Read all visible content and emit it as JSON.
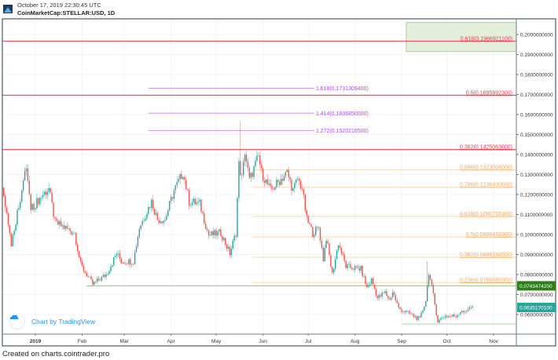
{
  "header": {
    "timestamp": "October 17, 2019 22:30:45 UTC",
    "symbol": "CoinMarketCap:STELLAR:USD, 1D"
  },
  "watermark": "Chart by TradingView",
  "footer": "Created on charts.cointrader.pro",
  "colors": {
    "up": "#26a69a",
    "down": "#ef5350",
    "red_level": "#f23645",
    "purple_level": "#b04ee0",
    "orange_level": "#f7a95c",
    "green_level": "#2e7d1a",
    "current": "#26a69a",
    "zone": "#e3eedb"
  },
  "chart_data": {
    "type": "candlestick",
    "title": "CoinMarketCap:STELLAR:USD, 1D",
    "x_unit": "day offset from 2019-01-01",
    "xlim": [
      -22,
      302
    ],
    "ylim": [
      0.0447,
      0.2106
    ],
    "x_ticks": [
      {
        "label": "2019",
        "day": 0
      },
      {
        "label": "Feb",
        "day": 31
      },
      {
        "label": "Mar",
        "day": 59
      },
      {
        "label": "Apr",
        "day": 90
      },
      {
        "label": "May",
        "day": 120
      },
      {
        "label": "Jun",
        "day": 151
      },
      {
        "label": "Jul",
        "day": 181
      },
      {
        "label": "Aug",
        "day": 212
      },
      {
        "label": "Sep",
        "day": 243
      },
      {
        "label": "Oct",
        "day": 273
      },
      {
        "label": "Nov",
        "day": 304
      }
    ],
    "y_ticks": [
      "0.2000000000",
      "0.1900000000",
      "0.1800000000",
      "0.1700000000",
      "0.1600000000",
      "0.1500000000",
      "0.1400000000",
      "0.1300000000",
      "0.1200000000",
      "0.1100000000",
      "0.1000000000",
      "0.0900000000",
      "0.0800000000",
      "0.0700000000",
      "0.0600000000"
    ],
    "price_path": [
      [
        -22,
        0.1243
      ],
      [
        -16,
        0.0957
      ],
      [
        -6,
        0.1337
      ],
      [
        -3,
        0.1125
      ],
      [
        5,
        0.12
      ],
      [
        9,
        0.123
      ],
      [
        13,
        0.106
      ],
      [
        26,
        0.1008
      ],
      [
        30,
        0.085
      ],
      [
        38,
        0.075
      ],
      [
        47,
        0.08
      ],
      [
        54,
        0.0906
      ],
      [
        57,
        0.0866
      ],
      [
        65,
        0.0866
      ],
      [
        69,
        0.1035
      ],
      [
        77,
        0.1165
      ],
      [
        81,
        0.1075
      ],
      [
        86,
        0.1075
      ],
      [
        92,
        0.122
      ],
      [
        98,
        0.131
      ],
      [
        102,
        0.1165
      ],
      [
        109,
        0.1153
      ],
      [
        115,
        0.0996
      ],
      [
        123,
        0.1008
      ],
      [
        129,
        0.0906
      ],
      [
        133,
        0.1008
      ],
      [
        135,
        0.135
      ],
      [
        137,
        0.1282
      ],
      [
        139,
        0.1416
      ],
      [
        142,
        0.127
      ],
      [
        148,
        0.139
      ],
      [
        150,
        0.131
      ],
      [
        156,
        0.122
      ],
      [
        167,
        0.131
      ],
      [
        171,
        0.122
      ],
      [
        174,
        0.1278
      ],
      [
        177,
        0.123
      ],
      [
        180,
        0.1075
      ],
      [
        184,
        0.1008
      ],
      [
        188,
        0.1035
      ],
      [
        191,
        0.0878
      ],
      [
        193,
        0.0984
      ],
      [
        197,
        0.08
      ],
      [
        201,
        0.0957
      ],
      [
        206,
        0.0839
      ],
      [
        216,
        0.0827
      ],
      [
        220,
        0.0733
      ],
      [
        223,
        0.0773
      ],
      [
        227,
        0.0682
      ],
      [
        232,
        0.071
      ],
      [
        235,
        0.0671
      ],
      [
        237,
        0.0714
      ],
      [
        241,
        0.0631
      ],
      [
        248,
        0.0604
      ],
      [
        255,
        0.0576
      ],
      [
        259,
        0.0671
      ],
      [
        261,
        0.0812
      ],
      [
        264,
        0.0694
      ],
      [
        267,
        0.0565
      ],
      [
        271,
        0.0592
      ],
      [
        279,
        0.0592
      ],
      [
        283,
        0.0624
      ],
      [
        285,
        0.0604
      ],
      [
        288,
        0.0643
      ],
      [
        290,
        0.0635
      ]
    ],
    "wick_spikes": [
      [
        136,
        0.1565
      ],
      [
        260,
        0.0867
      ]
    ],
    "fib_levels": [
      {
        "group": "red",
        "label": "0.618(0.1966921100)",
        "price": 0.19669211,
        "from_day": -22
      },
      {
        "group": "red",
        "label": "0.5(0.1695992300)",
        "price": 0.16959923,
        "from_day": -22
      },
      {
        "group": "red",
        "label": "0.382(0.1425063600)",
        "price": 0.14250636,
        "from_day": -22
      },
      {
        "group": "purple",
        "label": "1.618(0.1731309400)",
        "price": 0.17313094,
        "from_day": 75,
        "to_day": 185
      },
      {
        "group": "purple",
        "label": "1.414(0.1606850000)",
        "price": 0.160685,
        "from_day": 75,
        "to_day": 185
      },
      {
        "group": "purple",
        "label": "1.272(0.1520216500)",
        "price": 0.15202165,
        "from_day": 75,
        "to_day": 185
      },
      {
        "group": "orange",
        "label": "0.886(0.1323094000)",
        "price": 0.1323094,
        "from_day": 144
      },
      {
        "group": "orange",
        "label": "0.786(0.1236400500)",
        "price": 0.12364005,
        "from_day": 144
      },
      {
        "group": "orange",
        "label": "0.618(0.1090755300)",
        "price": 0.10907553,
        "from_day": 144
      },
      {
        "group": "orange",
        "label": "0.5(0.0988456900)",
        "price": 0.09884569,
        "from_day": 144
      },
      {
        "group": "orange",
        "label": "0.382(0.0886158500)",
        "price": 0.08861585,
        "from_day": 144
      },
      {
        "group": "orange",
        "label": "0.236(0.0759585900)",
        "price": 0.07595859,
        "from_day": 144
      }
    ],
    "support_line": {
      "price": 0.07434742,
      "label": "0.0743474200",
      "from_day": 34
    },
    "bottom_line": {
      "price": 0.0553,
      "from_day": 243
    },
    "zone": {
      "from_day": 246,
      "price_low": 0.1915,
      "price_high": 0.206
    },
    "current_price": {
      "price": 0.06351701,
      "label": "0.0635170100"
    }
  }
}
